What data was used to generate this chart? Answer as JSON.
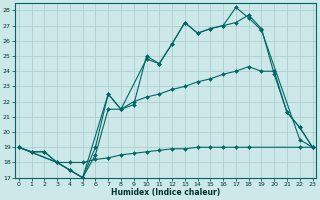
{
  "xlabel": "Humidex (Indice chaleur)",
  "xlim": [
    -0.3,
    23.3
  ],
  "ylim": [
    17,
    28.5
  ],
  "yticks": [
    17,
    18,
    19,
    20,
    21,
    22,
    23,
    24,
    25,
    26,
    27,
    28
  ],
  "xticks": [
    0,
    1,
    2,
    3,
    4,
    5,
    6,
    7,
    8,
    9,
    10,
    11,
    12,
    13,
    14,
    15,
    16,
    17,
    18,
    19,
    20,
    21,
    22,
    23
  ],
  "bg_color": "#cce8e8",
  "grid_color": "#aacccc",
  "line_color": "#006666",
  "line1_x": [
    0,
    1,
    2,
    3,
    4,
    5,
    6,
    7,
    8,
    9,
    10,
    11,
    12,
    13,
    14,
    15,
    16,
    17,
    18,
    22,
    23
  ],
  "line1_y": [
    19,
    18.7,
    18.7,
    18.0,
    18.0,
    18.0,
    18.2,
    18.3,
    18.5,
    18.6,
    18.7,
    18.8,
    18.9,
    18.9,
    19.0,
    19.0,
    19.0,
    19.0,
    19.0,
    19.0,
    19.0
  ],
  "line2_x": [
    0,
    1,
    2,
    3,
    4,
    5,
    6,
    7,
    8,
    9,
    10,
    11,
    12,
    13,
    14,
    15,
    16,
    17,
    18,
    19,
    20,
    21,
    22,
    23
  ],
  "line2_y": [
    19,
    18.7,
    18.7,
    18.0,
    17.5,
    17.0,
    18.5,
    21.5,
    21.5,
    22.0,
    22.3,
    22.5,
    22.8,
    23.0,
    23.3,
    23.5,
    23.8,
    24.0,
    24.3,
    24.0,
    24.0,
    21.3,
    20.3,
    19.0
  ],
  "line3_x": [
    0,
    3,
    4,
    5,
    6,
    7,
    8,
    9,
    10,
    11,
    12,
    13,
    14,
    15,
    16,
    17,
    18,
    19,
    20,
    21,
    22,
    23
  ],
  "line3_y": [
    19,
    18.0,
    17.5,
    17.0,
    19.0,
    22.5,
    21.5,
    21.8,
    25.0,
    24.5,
    25.8,
    27.2,
    26.5,
    26.8,
    27.0,
    27.2,
    27.7,
    26.8,
    23.8,
    21.3,
    20.3,
    19.0
  ],
  "line4_x": [
    0,
    3,
    5,
    7,
    8,
    10,
    11,
    12,
    13,
    14,
    15,
    16,
    17,
    18,
    19,
    22,
    23
  ],
  "line4_y": [
    19,
    18.0,
    17.0,
    22.5,
    21.5,
    24.8,
    24.5,
    25.8,
    27.2,
    26.5,
    26.8,
    27.0,
    28.2,
    27.5,
    26.7,
    19.5,
    19.0
  ]
}
